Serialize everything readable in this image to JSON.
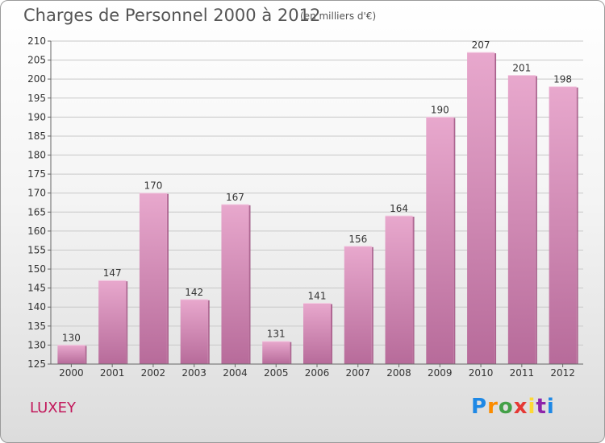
{
  "title": "Charges de Personnel 2000 à 2012",
  "subtitle": "(en milliers d'€)",
  "commune": "LUXEY",
  "logo": {
    "text": "Proxiti",
    "letters": [
      "P",
      "r",
      "o",
      "x",
      "i",
      "t",
      "i"
    ],
    "colors": [
      "#1e88e5",
      "#fb8c00",
      "#43a047",
      "#e53935",
      "#fdd835",
      "#8e24aa",
      "#1e88e5"
    ]
  },
  "chart_data": {
    "type": "bar",
    "categories": [
      "2000",
      "2001",
      "2002",
      "2003",
      "2004",
      "2005",
      "2006",
      "2007",
      "2008",
      "2009",
      "2010",
      "2011",
      "2012"
    ],
    "values": [
      130,
      147,
      170,
      142,
      167,
      131,
      141,
      156,
      164,
      190,
      207,
      201,
      198
    ],
    "title": "Charges de Personnel 2000 à 2012",
    "subtitle": "(en milliers d'€)",
    "xlabel": "",
    "ylabel": "",
    "ylim": [
      125,
      210
    ],
    "yticks": [
      125,
      130,
      135,
      140,
      145,
      150,
      155,
      160,
      165,
      170,
      175,
      180,
      185,
      190,
      195,
      200,
      205,
      210
    ],
    "grid": true,
    "bar_color": "#d98fba"
  }
}
